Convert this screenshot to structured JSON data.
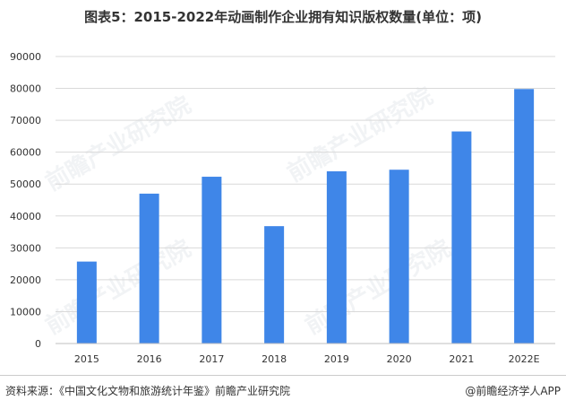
{
  "chart_data": {
    "type": "bar",
    "title": "图表5：2015-2022年动画制作企业拥有知识版权数量(单位：项)",
    "categories": [
      "2015",
      "2016",
      "2017",
      "2018",
      "2019",
      "2020",
      "2021",
      "2022E"
    ],
    "values": [
      25700,
      47000,
      52300,
      36800,
      54000,
      54500,
      66500,
      79800
    ],
    "ylim": [
      0,
      90000
    ],
    "yticks": [
      0,
      10000,
      20000,
      30000,
      40000,
      50000,
      60000,
      70000,
      80000,
      90000
    ],
    "grid": true,
    "bar_color": "#3f86e8"
  },
  "watermark": "前瞻产业研究院",
  "footer": {
    "source": "资料来源：《中国文化文物和旅游统计年鉴》前瞻产业研究院",
    "brand": "@前瞻经济学人APP"
  }
}
